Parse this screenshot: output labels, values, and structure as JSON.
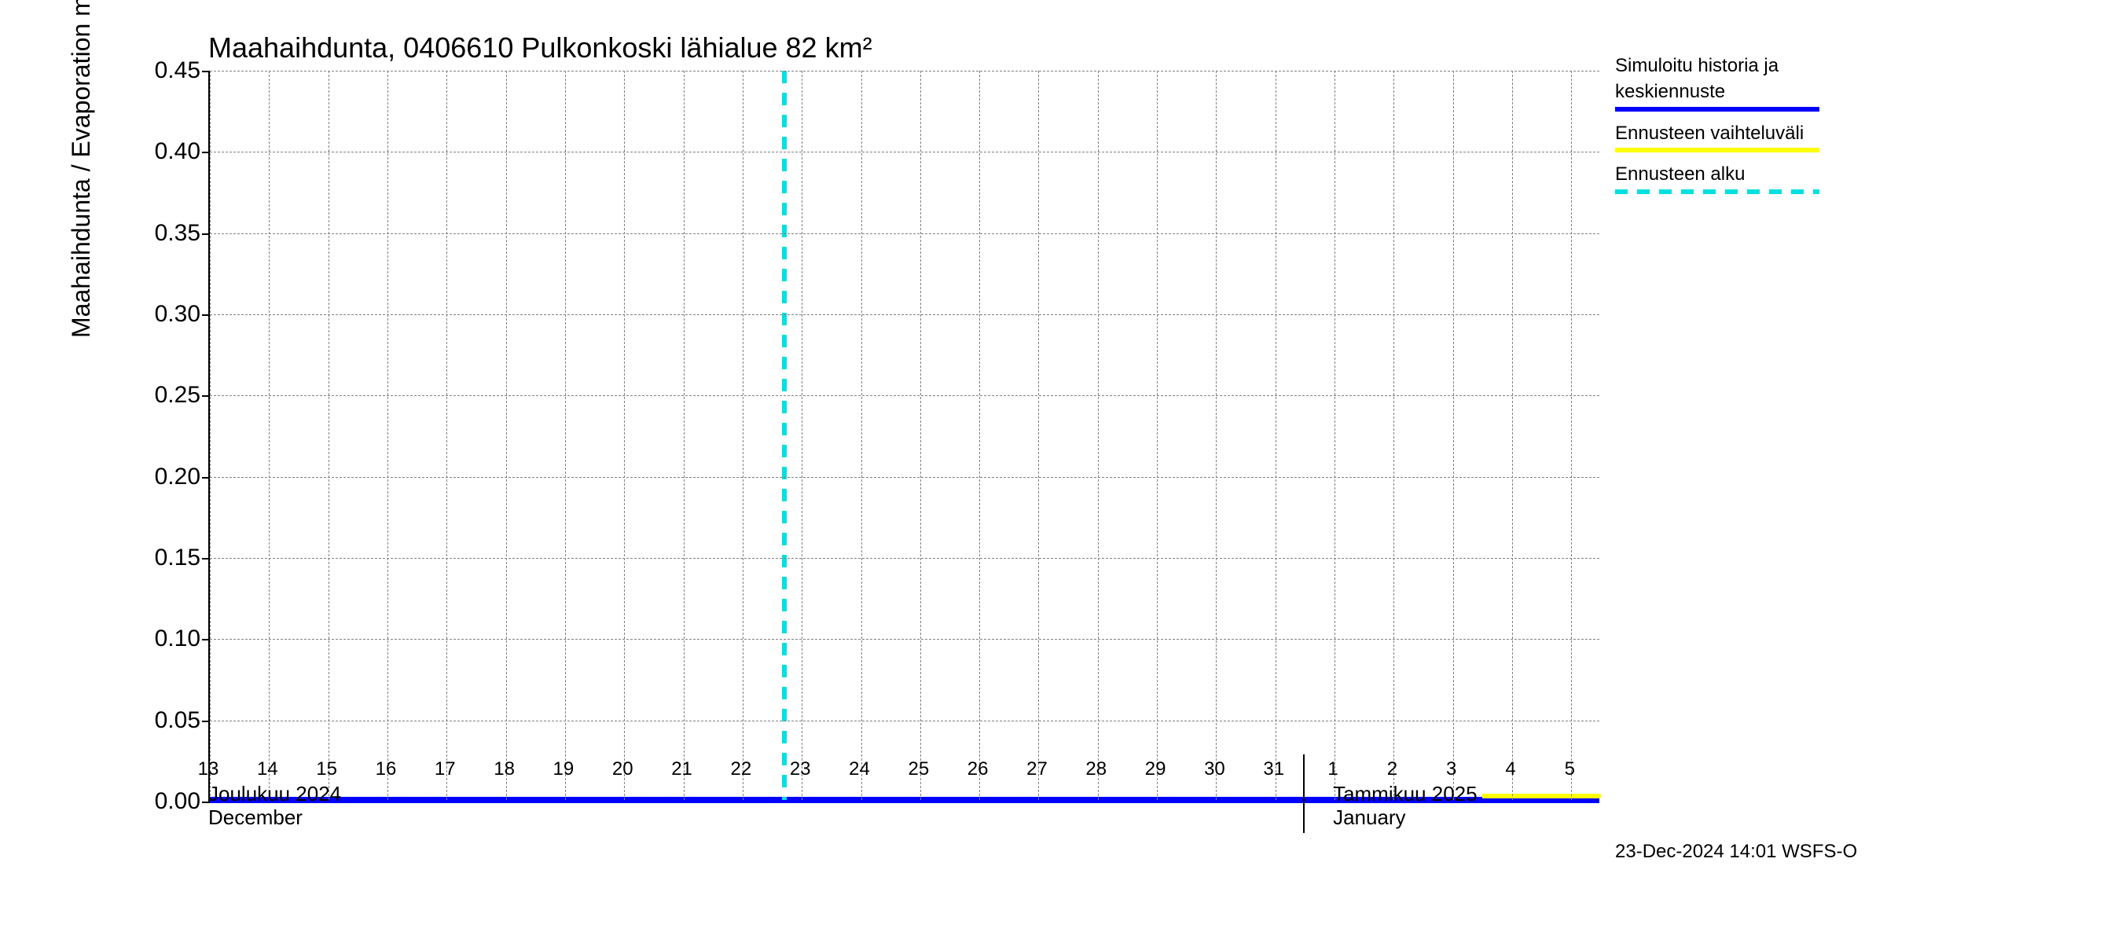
{
  "chart": {
    "type": "line",
    "title": "Maahaihdunta, 0406610 Pulkonkoski lähialue 82 km²",
    "y_axis_label": "Maahaihdunta / Evaporation   mm/d",
    "title_fontsize": 36,
    "label_fontsize": 32,
    "tick_fontsize": 30,
    "background_color": "#ffffff",
    "grid_color": "#808080",
    "axis_color": "#000000",
    "ylim": [
      0.0,
      0.45
    ],
    "yticks": [
      0.0,
      0.05,
      0.1,
      0.15,
      0.2,
      0.25,
      0.3,
      0.35,
      0.4,
      0.45
    ],
    "ytick_labels": [
      "0.00",
      "0.05",
      "0.10",
      "0.15",
      "0.20",
      "0.25",
      "0.30",
      "0.35",
      "0.40",
      "0.45"
    ],
    "x_days": [
      13,
      14,
      15,
      16,
      17,
      18,
      19,
      20,
      21,
      22,
      23,
      24,
      25,
      26,
      27,
      28,
      29,
      30,
      31,
      1,
      2,
      3,
      4,
      5
    ],
    "x_labels": [
      "13",
      "14",
      "15",
      "16",
      "17",
      "18",
      "19",
      "20",
      "21",
      "22",
      "23",
      "24",
      "25",
      "26",
      "27",
      "28",
      "29",
      "30",
      "31",
      "1",
      "2",
      "3",
      "4",
      "5"
    ],
    "month_groups": [
      {
        "fi": "Joulukuu  2024",
        "en": "December",
        "start_index": 0,
        "divider_after_index": 18
      },
      {
        "fi": "Tammikuu  2025",
        "en": "January",
        "start_index": 19
      }
    ],
    "forecast_start_index": 9.7,
    "series": {
      "history_mean": {
        "label_fi1": "Simuloitu historia ja",
        "label_fi2": "keskiennuste",
        "color": "#0000ff",
        "line_width": 8,
        "values": [
          0,
          0,
          0,
          0,
          0,
          0,
          0,
          0,
          0,
          0,
          0,
          0,
          0,
          0,
          0,
          0,
          0,
          0,
          0,
          0,
          0,
          0,
          0,
          0
        ]
      },
      "forecast_range": {
        "label": "Ennusteen vaihteluväli",
        "color": "#ffff00",
        "line_width": 6,
        "start_index": 21.5,
        "values": [
          0.003,
          0.003,
          0.003
        ]
      },
      "forecast_start": {
        "label": "Ennusteen alku",
        "color": "#00e0e0",
        "dash": [
          16,
          12
        ],
        "line_width": 6
      }
    },
    "footer": "23-Dec-2024 14:01 WSFS-O"
  }
}
